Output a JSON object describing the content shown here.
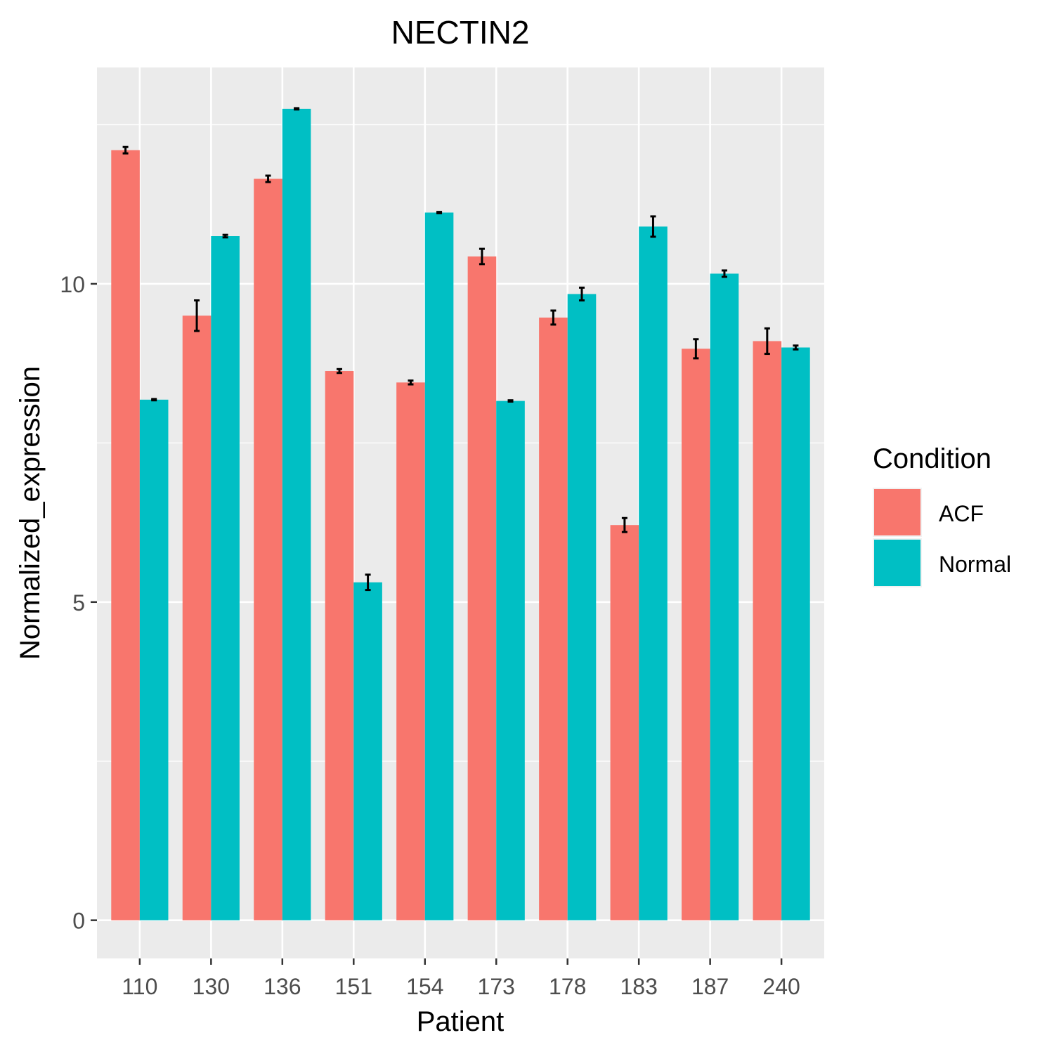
{
  "chart_data": {
    "type": "bar",
    "title": "NECTIN2",
    "xlabel": "Patient",
    "ylabel": "Normalized_expression",
    "categories": [
      "110",
      "130",
      "136",
      "151",
      "154",
      "173",
      "178",
      "183",
      "187",
      "240"
    ],
    "series": [
      {
        "name": "ACF",
        "color": "#F8766D",
        "values": [
          12.1,
          9.5,
          11.65,
          8.63,
          8.45,
          10.43,
          9.47,
          6.21,
          8.98,
          9.1
        ],
        "errors": [
          0.05,
          0.24,
          0.05,
          0.03,
          0.03,
          0.12,
          0.11,
          0.11,
          0.15,
          0.2
        ]
      },
      {
        "name": "Normal",
        "color": "#00BFC4",
        "values": [
          8.18,
          10.75,
          12.75,
          5.31,
          11.12,
          8.16,
          9.84,
          10.9,
          10.16,
          9.0
        ],
        "errors": [
          0.01,
          0.02,
          0.01,
          0.12,
          0.01,
          0.01,
          0.1,
          0.16,
          0.05,
          0.03
        ]
      }
    ],
    "yticks": [
      0,
      5,
      10
    ],
    "ylim": [
      -0.6,
      13.4
    ],
    "grid": true,
    "legend": {
      "title": "Condition",
      "position": "right"
    }
  }
}
